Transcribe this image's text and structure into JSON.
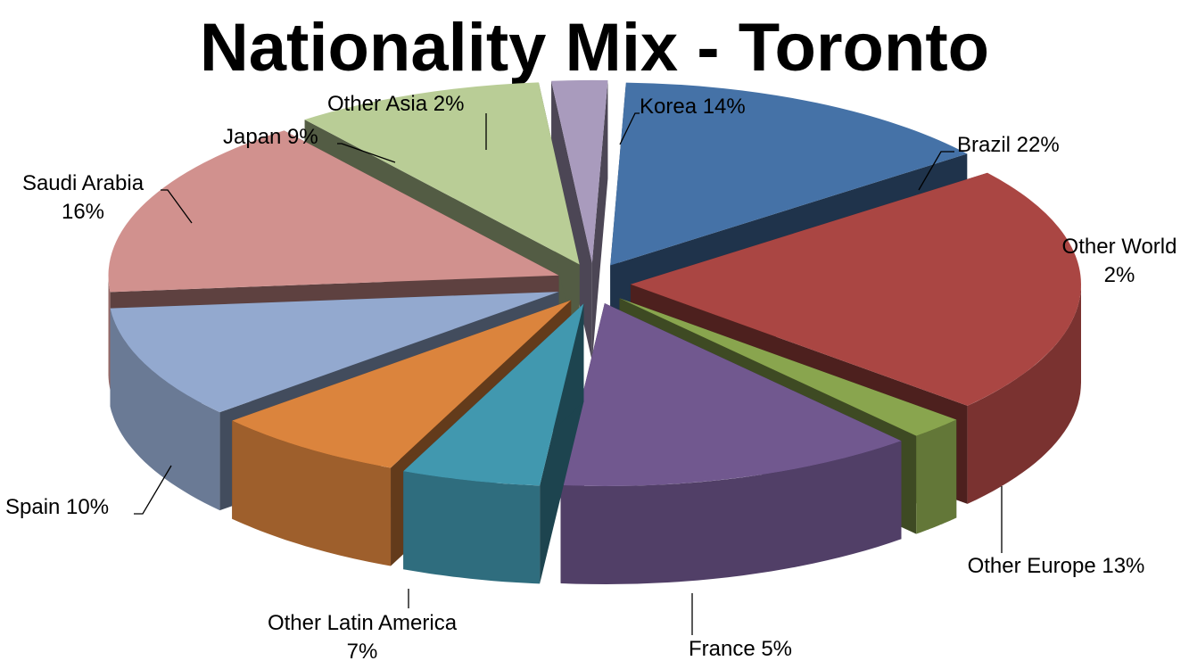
{
  "chart_data": {
    "type": "pie",
    "style": "3d-exploded",
    "title": "Nationality Mix - Toronto",
    "legend": "none",
    "slices": [
      {
        "name": "Korea",
        "value": 14,
        "pct_label": "14%",
        "label_lines": [
          "Korea 14%"
        ],
        "color": "#4572a7"
      },
      {
        "name": "Brazil",
        "value": 22,
        "pct_label": "22%",
        "label_lines": [
          "Brazil 22%"
        ],
        "color": "#aa4643"
      },
      {
        "name": "Other World",
        "value": 2,
        "pct_label": "2%",
        "label_lines": [
          "Other World",
          "2%"
        ],
        "color": "#89a54e"
      },
      {
        "name": "Other Europe",
        "value": 13,
        "pct_label": "13%",
        "label_lines": [
          "Other Europe 13%"
        ],
        "color": "#71588f"
      },
      {
        "name": "France",
        "value": 5,
        "pct_label": "5%",
        "label_lines": [
          "France 5%"
        ],
        "color": "#4198af"
      },
      {
        "name": "Other Latin America",
        "value": 7,
        "pct_label": "7%",
        "label_lines": [
          "Other Latin America",
          "7%"
        ],
        "color": "#db843d"
      },
      {
        "name": "Spain",
        "value": 10,
        "pct_label": "10%",
        "label_lines": [
          "Spain 10%"
        ],
        "color": "#93a9cf"
      },
      {
        "name": "Saudi Arabia",
        "value": 16,
        "pct_label": "16%",
        "label_lines": [
          "Saudi Arabia",
          "16%"
        ],
        "color": "#d1918e"
      },
      {
        "name": "Japan",
        "value": 9,
        "pct_label": "9%",
        "label_lines": [
          "Japan 9%"
        ],
        "color": "#b9cd96"
      },
      {
        "name": "Other Asia",
        "value": 2,
        "pct_label": "2%",
        "label_lines": [
          "Other Asia 2%"
        ],
        "color": "#a99bbd"
      }
    ]
  }
}
